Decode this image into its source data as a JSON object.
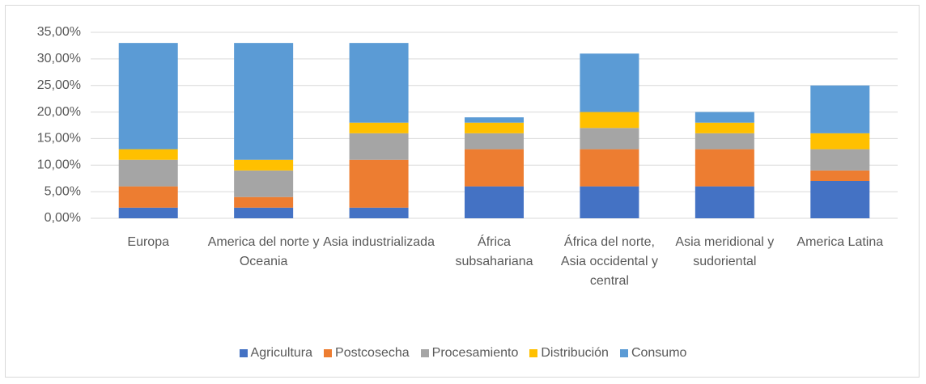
{
  "chart_data": {
    "type": "stacked_bar",
    "categories": [
      "Europa",
      "America del norte y Oceania",
      "Asia industrializada",
      "África subsahariana",
      "África del norte, Asia occidental y central",
      "Asia meridional y sudoriental",
      "America Latina"
    ],
    "series": [
      {
        "name": "Agricultura",
        "color": "#4472c4",
        "values": [
          2,
          2,
          2,
          6,
          6,
          6,
          7
        ]
      },
      {
        "name": "Postcosecha",
        "color": "#ed7d31",
        "values": [
          4,
          2,
          9,
          7,
          7,
          7,
          2
        ]
      },
      {
        "name": "Procesamiento",
        "color": "#a5a5a5",
        "values": [
          5,
          5,
          5,
          3,
          4,
          3,
          4
        ]
      },
      {
        "name": "Distribución",
        "color": "#ffc000",
        "values": [
          2,
          2,
          2,
          2,
          3,
          2,
          3
        ]
      },
      {
        "name": "Consumo",
        "color": "#5b9bd5",
        "values": [
          20,
          22,
          15,
          1,
          11,
          2,
          9
        ]
      }
    ],
    "ylim": [
      0,
      35
    ],
    "yticks": [
      {
        "value": 0,
        "label": "0,00%"
      },
      {
        "value": 5,
        "label": "5,00%"
      },
      {
        "value": 10,
        "label": "10,00%"
      },
      {
        "value": 15,
        "label": "15,00%"
      },
      {
        "value": 20,
        "label": "20,00%"
      },
      {
        "value": 25,
        "label": "25,00%"
      },
      {
        "value": 30,
        "label": "30,00%"
      },
      {
        "value": 35,
        "label": "35,00%"
      }
    ],
    "grid": true,
    "legend": "bottom"
  }
}
